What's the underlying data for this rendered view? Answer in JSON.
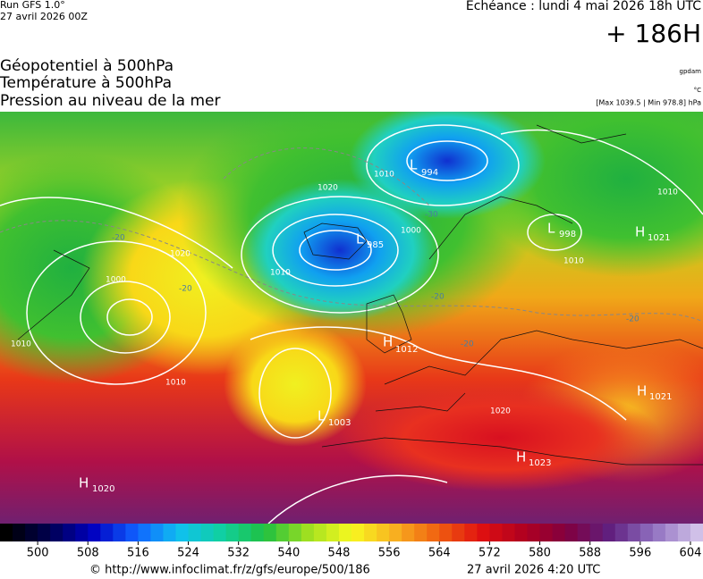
{
  "header": {
    "run": "Run GFS 1.0°",
    "run_date": "27 avril 2026 00Z",
    "echeance": "Echéance : lundi 4 mai 2026 18h UTC",
    "lead": "+ 186H",
    "layers": [
      "Géopotentiel à 500hPa",
      "Température à 500hPa",
      "Pression au niveau de la mer"
    ],
    "unit_geo": "gpdam",
    "unit_temp": "°C",
    "extremes": "[Max 1039.5 | Min 978.8] hPa"
  },
  "centers": [
    {
      "type": "L",
      "pressure": 994
    },
    {
      "type": "L",
      "pressure": 985
    },
    {
      "type": "L",
      "pressure": 998
    },
    {
      "type": "H",
      "pressure": 1021
    },
    {
      "type": "H",
      "pressure": 1012
    },
    {
      "type": "H",
      "pressure": 1021
    },
    {
      "type": "L",
      "pressure": 1003
    },
    {
      "type": "H",
      "pressure": 1023
    },
    {
      "type": "H",
      "pressure": 1020
    }
  ],
  "isobar_labels": [
    "1020",
    "1010",
    "1000",
    "1010",
    "1020",
    "1000",
    "1010",
    "1010",
    "1010",
    "1020",
    "1010"
  ],
  "temp_labels": [
    "-20",
    "-30",
    "-20",
    "-20",
    "-20",
    "-20"
  ],
  "colorbar": {
    "range": [
      494,
      606
    ],
    "ticks": [
      500,
      508,
      516,
      524,
      532,
      540,
      548,
      556,
      564,
      572,
      580,
      588,
      596,
      604
    ]
  },
  "footer": {
    "url": "© http://www.infoclimat.fr/z/gfs/europe/500/186",
    "date": "27 avril 2026  4:20 UTC"
  }
}
